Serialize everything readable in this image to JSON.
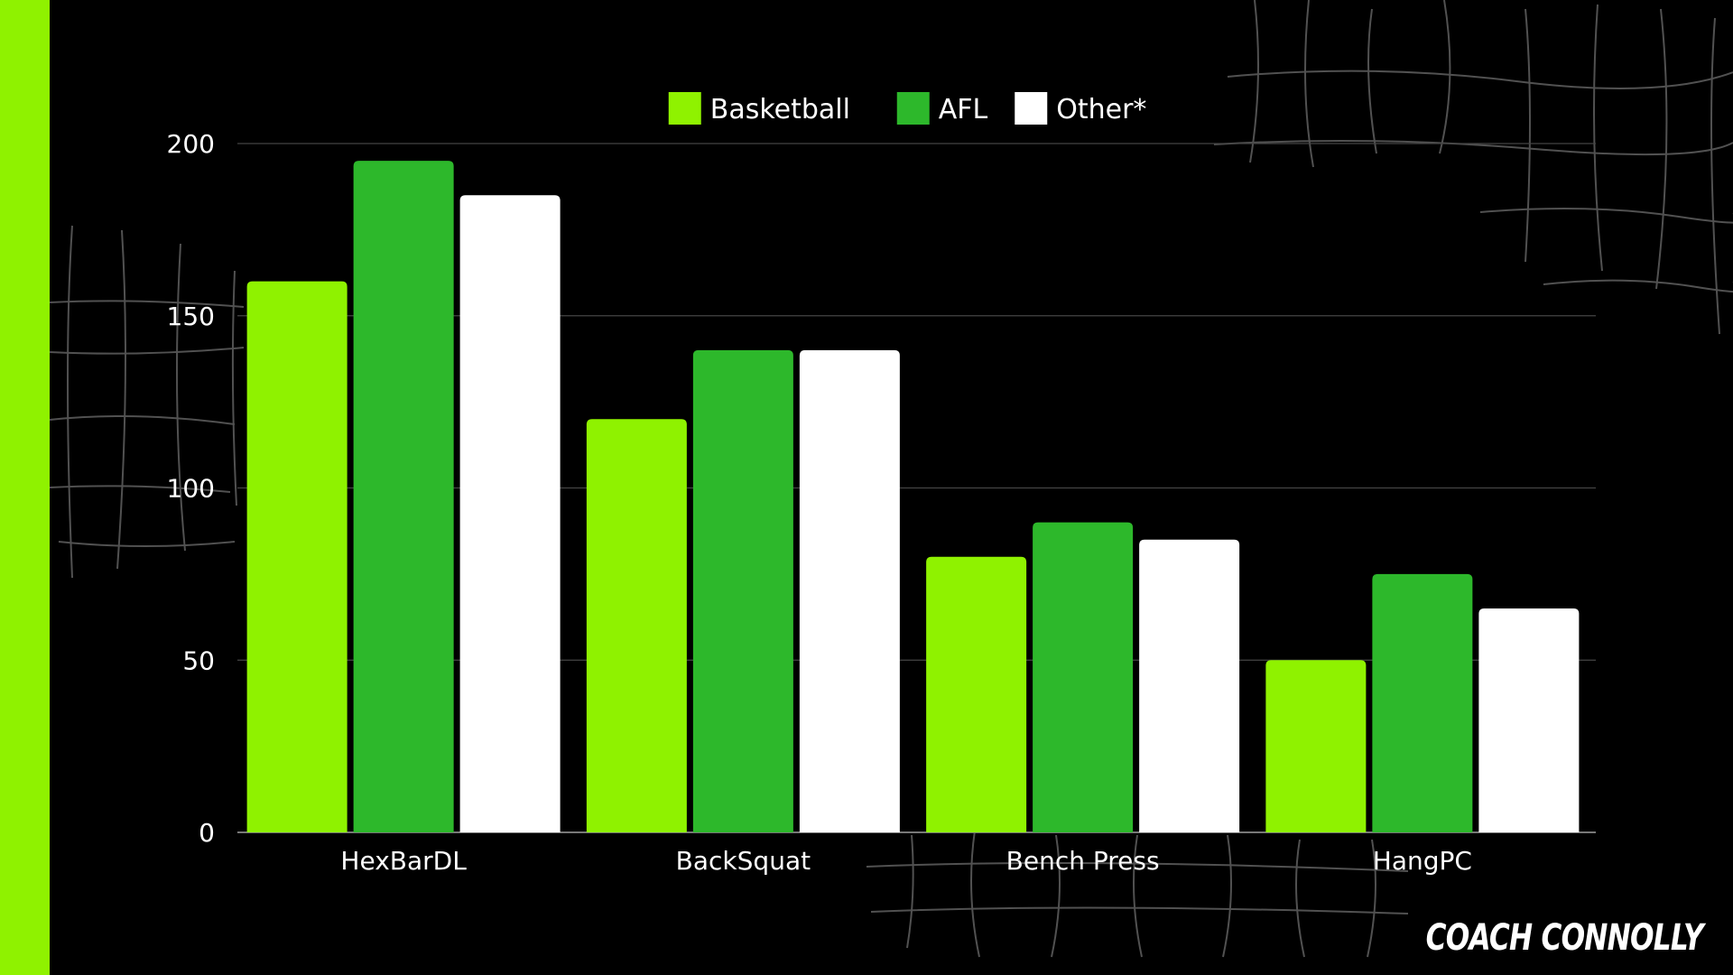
{
  "chart_data": {
    "type": "bar",
    "categories": [
      "HexBarDL",
      "BackSquat",
      "Bench Press",
      "HangPC"
    ],
    "series": [
      {
        "name": "Basketball",
        "color": "#8ff200",
        "values": [
          160,
          120,
          80,
          50
        ]
      },
      {
        "name": "AFL",
        "color": "#2db82b",
        "values": [
          195,
          140,
          90,
          75
        ]
      },
      {
        "name": "Other*",
        "color": "#ffffff",
        "values": [
          185,
          140,
          85,
          65
        ]
      }
    ],
    "ylim": [
      0,
      200
    ],
    "yticks": [
      0,
      50,
      100,
      150,
      200
    ],
    "xlabel": "",
    "ylabel": "",
    "grid": true,
    "legend": "top-center"
  },
  "branding": {
    "label": "COACH CONNOLLY",
    "accent_color": "#8ff200"
  }
}
